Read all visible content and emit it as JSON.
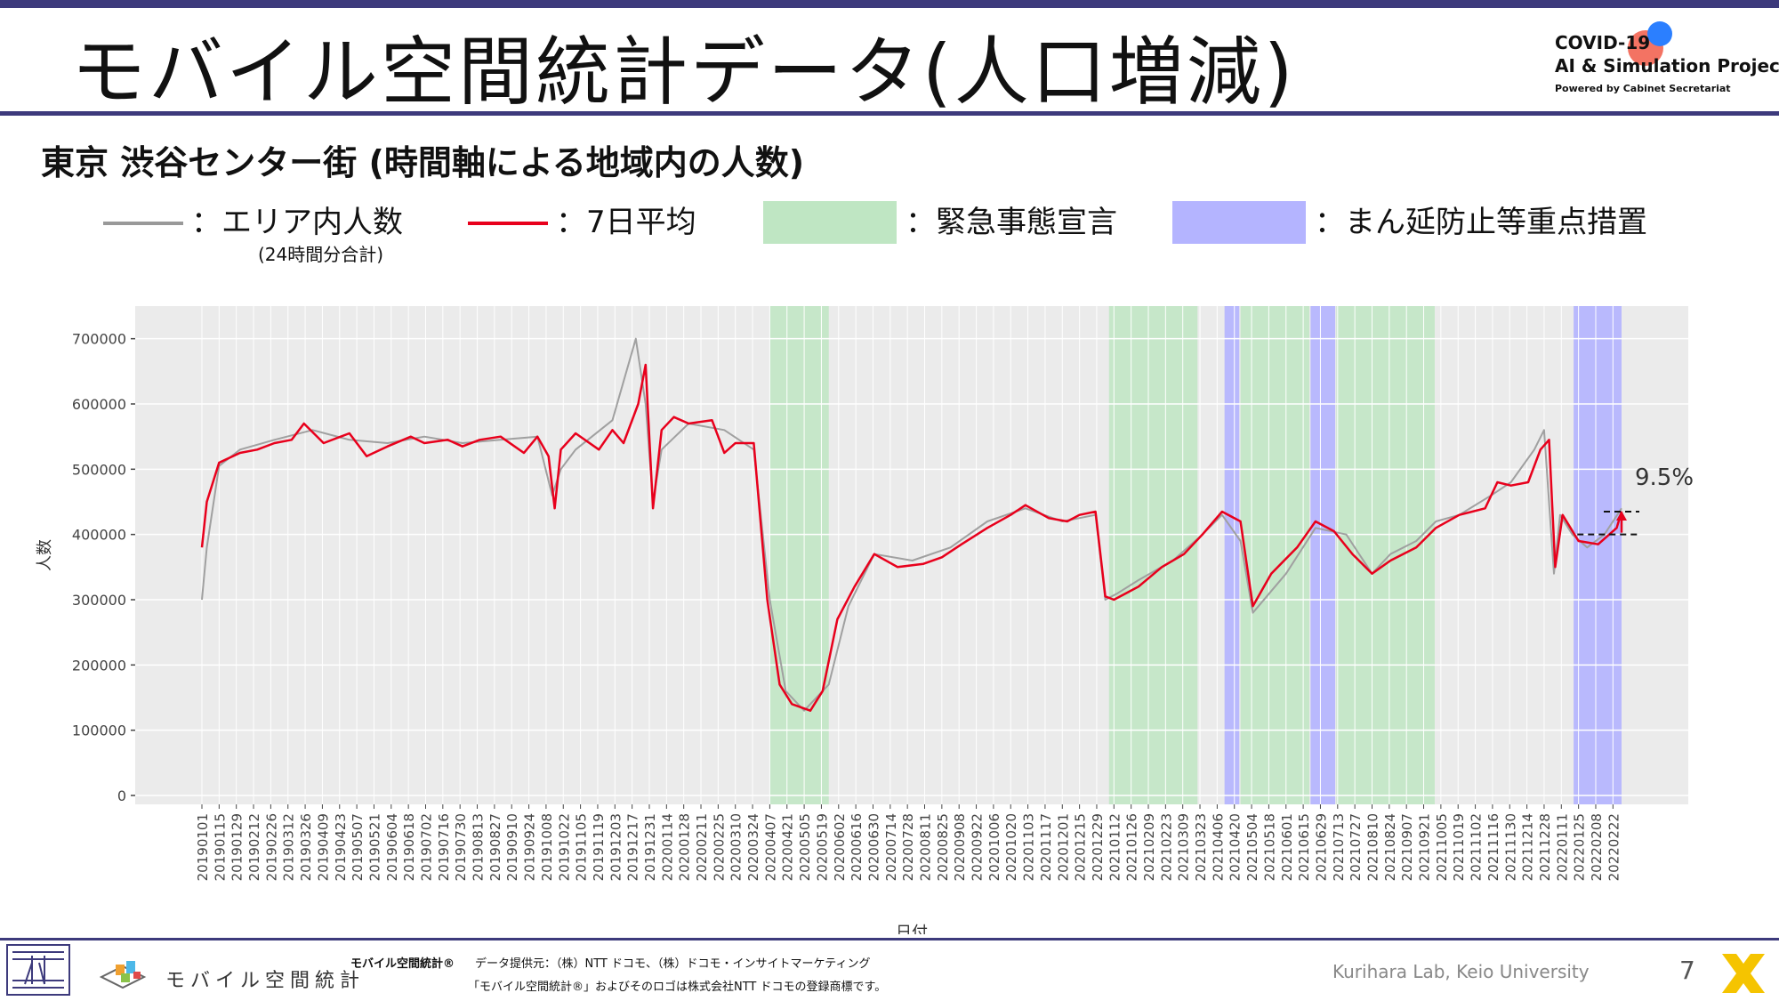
{
  "header": {
    "title": "モバイル空間統計データ(人口増減)",
    "logo_line1": "COVID-19",
    "logo_line2": "AI & Simulation Project",
    "logo_line3": "Powered by Cabinet Secretariat"
  },
  "subtitle": "東京 渋谷センター街 (時間軸による地域内の人数)",
  "legend": {
    "area_count": "：エリア内人数",
    "area_count_note": "(24時間分合計)",
    "avg7": "：7日平均",
    "emergency": "：緊急事態宣言",
    "priority": "：まん延防止等重点措置"
  },
  "colors": {
    "raw_line": "#a0a0a0",
    "avg_line": "#e8001c",
    "emergency": "#bfe6c3",
    "priority": "#b4b4ff",
    "plot_bg": "#ebebeb",
    "accent": "#3d3a7c"
  },
  "chart_data": {
    "type": "line",
    "xlabel": "日付",
    "ylabel": "人数",
    "ylim": [
      0,
      750000
    ],
    "yticks": [
      0,
      100000,
      200000,
      300000,
      400000,
      500000,
      600000,
      700000
    ],
    "ytick_labels": [
      "0",
      "100000",
      "200000",
      "300000",
      "400000",
      "500000",
      "600000",
      "700000"
    ],
    "x_start": "2019-01-01",
    "x_end": "2022-03-01",
    "xtick_labels": [
      "20190101",
      "20190115",
      "20190129",
      "20190212",
      "20190226",
      "20190312",
      "20190326",
      "20190409",
      "20190423",
      "20190507",
      "20190521",
      "20190604",
      "20190618",
      "20190702",
      "20190716",
      "20190730",
      "20190813",
      "20190827",
      "20190910",
      "20190924",
      "20191008",
      "20191022",
      "20191105",
      "20191119",
      "20191203",
      "20191217",
      "20191231",
      "20200114",
      "20200128",
      "20200211",
      "20200225",
      "20200310",
      "20200324",
      "20200407",
      "20200421",
      "20200505",
      "20200519",
      "20200602",
      "20200616",
      "20200630",
      "20200714",
      "20200728",
      "20200811",
      "20200825",
      "20200908",
      "20200922",
      "20201006",
      "20201020",
      "20201103",
      "20201117",
      "20201201",
      "20201215",
      "20201229",
      "20210112",
      "20210126",
      "20210209",
      "20210223",
      "20210309",
      "20210323",
      "20210406",
      "20210420",
      "20210504",
      "20210518",
      "20210601",
      "20210615",
      "20210629",
      "20210713",
      "20210727",
      "20210810",
      "20210824",
      "20210907",
      "20210921",
      "20211005",
      "20211019",
      "20211102",
      "20211116",
      "20211130",
      "20211214",
      "20211228",
      "20220111",
      "20220125",
      "20220208",
      "20220222"
    ],
    "emergency_periods": [
      [
        "2020-04-07",
        "2020-05-25"
      ],
      [
        "2021-01-08",
        "2021-03-21"
      ],
      [
        "2021-04-25",
        "2021-06-20"
      ],
      [
        "2021-07-12",
        "2021-09-30"
      ]
    ],
    "priority_periods": [
      [
        "2021-04-12",
        "2021-04-24"
      ],
      [
        "2021-06-21",
        "2021-07-11"
      ],
      [
        "2022-01-21",
        "2022-03-01"
      ]
    ],
    "series": [
      {
        "name": "エリア内人数",
        "x": [
          "2019-01-01",
          "2019-01-05",
          "2019-01-15",
          "2019-02-01",
          "2019-03-01",
          "2019-04-01",
          "2019-05-01",
          "2019-06-01",
          "2019-07-01",
          "2019-08-01",
          "2019-09-01",
          "2019-10-01",
          "2019-10-13",
          "2019-10-20",
          "2019-11-01",
          "2019-12-01",
          "2019-12-20",
          "2019-12-28",
          "2020-01-03",
          "2020-01-10",
          "2020-02-01",
          "2020-03-01",
          "2020-03-25",
          "2020-04-07",
          "2020-04-20",
          "2020-05-05",
          "2020-05-25",
          "2020-06-10",
          "2020-07-01",
          "2020-08-01",
          "2020-09-01",
          "2020-10-01",
          "2020-11-01",
          "2020-12-01",
          "2020-12-28",
          "2021-01-05",
          "2021-01-15",
          "2021-02-01",
          "2021-03-01",
          "2021-03-25",
          "2021-04-10",
          "2021-04-25",
          "2021-05-05",
          "2021-06-01",
          "2021-06-25",
          "2021-07-20",
          "2021-08-10",
          "2021-08-25",
          "2021-09-15",
          "2021-10-01",
          "2021-10-20",
          "2021-11-15",
          "2021-12-01",
          "2021-12-20",
          "2021-12-28",
          "2022-01-05",
          "2022-01-10",
          "2022-01-20",
          "2022-02-01",
          "2022-02-15",
          "2022-03-01"
        ],
        "values": [
          300000,
          380000,
          505000,
          530000,
          545000,
          560000,
          545000,
          540000,
          550000,
          540000,
          545000,
          550000,
          460000,
          500000,
          530000,
          575000,
          700000,
          600000,
          450000,
          530000,
          570000,
          560000,
          530000,
          300000,
          160000,
          130000,
          170000,
          290000,
          370000,
          360000,
          380000,
          420000,
          440000,
          420000,
          430000,
          300000,
          310000,
          330000,
          360000,
          400000,
          430000,
          390000,
          280000,
          340000,
          410000,
          400000,
          340000,
          370000,
          390000,
          420000,
          430000,
          460000,
          480000,
          530000,
          560000,
          340000,
          430000,
          400000,
          380000,
          400000,
          440000
        ]
      },
      {
        "name": "7日平均",
        "x": [
          "2019-01-01",
          "2019-01-05",
          "2019-01-15",
          "2019-02-01",
          "2019-02-15",
          "2019-03-01",
          "2019-03-15",
          "2019-03-25",
          "2019-04-10",
          "2019-05-01",
          "2019-05-15",
          "2019-06-01",
          "2019-06-20",
          "2019-07-01",
          "2019-07-20",
          "2019-08-01",
          "2019-08-15",
          "2019-09-01",
          "2019-09-20",
          "2019-10-01",
          "2019-10-10",
          "2019-10-15",
          "2019-10-20",
          "2019-11-01",
          "2019-11-20",
          "2019-12-01",
          "2019-12-10",
          "2019-12-22",
          "2019-12-28",
          "2020-01-03",
          "2020-01-10",
          "2020-01-20",
          "2020-02-01",
          "2020-02-20",
          "2020-03-01",
          "2020-03-10",
          "2020-03-25",
          "2020-04-05",
          "2020-04-15",
          "2020-04-25",
          "2020-05-10",
          "2020-05-20",
          "2020-06-01",
          "2020-06-15",
          "2020-07-01",
          "2020-07-20",
          "2020-08-10",
          "2020-08-25",
          "2020-09-10",
          "2020-10-01",
          "2020-10-20",
          "2020-11-01",
          "2020-11-20",
          "2020-12-05",
          "2020-12-15",
          "2020-12-28",
          "2021-01-05",
          "2021-01-12",
          "2021-02-01",
          "2021-02-20",
          "2021-03-10",
          "2021-03-25",
          "2021-04-10",
          "2021-04-25",
          "2021-05-05",
          "2021-05-20",
          "2021-06-10",
          "2021-06-25",
          "2021-07-10",
          "2021-07-25",
          "2021-08-10",
          "2021-08-25",
          "2021-09-15",
          "2021-10-01",
          "2021-10-20",
          "2021-11-10",
          "2021-11-20",
          "2021-12-01",
          "2021-12-15",
          "2021-12-25",
          "2022-01-01",
          "2022-01-06",
          "2022-01-12",
          "2022-01-25",
          "2022-02-10",
          "2022-02-25",
          "2022-03-01"
        ],
        "values": [
          380000,
          450000,
          510000,
          525000,
          530000,
          540000,
          545000,
          570000,
          540000,
          555000,
          520000,
          535000,
          550000,
          540000,
          545000,
          535000,
          545000,
          550000,
          525000,
          550000,
          520000,
          440000,
          530000,
          555000,
          530000,
          560000,
          540000,
          600000,
          660000,
          440000,
          560000,
          580000,
          570000,
          575000,
          525000,
          540000,
          540000,
          300000,
          170000,
          140000,
          130000,
          160000,
          270000,
          320000,
          370000,
          350000,
          355000,
          365000,
          385000,
          410000,
          430000,
          445000,
          425000,
          420000,
          430000,
          435000,
          305000,
          300000,
          320000,
          350000,
          370000,
          400000,
          435000,
          420000,
          290000,
          340000,
          380000,
          420000,
          405000,
          370000,
          340000,
          360000,
          380000,
          410000,
          430000,
          440000,
          480000,
          475000,
          480000,
          530000,
          545000,
          350000,
          430000,
          390000,
          385000,
          410000,
          435000
        ]
      }
    ],
    "annotation": "9.5%"
  },
  "footer": {
    "brand": "モバイル空間統計",
    "brand_bold": "モバイル空間統計®",
    "provider": "データ提供元：（株）NTT ドコモ、（株）ドコモ・インサイトマーケティング",
    "trademark": "「モバイル空間統計®」およびそのロゴは株式会社NTT ドコモの登録商標です。",
    "lab": "Kurihara Lab, Keio University",
    "page": "7"
  }
}
